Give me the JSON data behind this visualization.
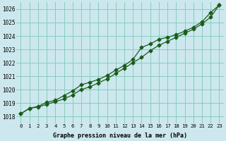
{
  "title": "Graphe pression niveau de la mer (hPa)",
  "x_labels": [
    "0",
    "1",
    "2",
    "3",
    "4",
    "5",
    "6",
    "7",
    "8",
    "9",
    "10",
    "11",
    "12",
    "13",
    "14",
    "15",
    "16",
    "17",
    "18",
    "19",
    "20",
    "21",
    "22",
    "23"
  ],
  "xlim": [
    -0.5,
    23.5
  ],
  "ylim": [
    1017.5,
    1026.5
  ],
  "yticks": [
    1018,
    1019,
    1020,
    1021,
    1022,
    1023,
    1024,
    1025,
    1026
  ],
  "bg_color": "#cce8ee",
  "grid_color": "#88ccbb",
  "line_color": "#1a5c1a",
  "line1_y": [
    1018.2,
    1018.6,
    1018.7,
    1018.9,
    1019.1,
    1019.3,
    1019.6,
    1020.0,
    1020.2,
    1020.5,
    1020.8,
    1021.2,
    1021.6,
    1022.0,
    1022.4,
    1022.9,
    1023.3,
    1023.6,
    1023.9,
    1024.2,
    1024.5,
    1024.9,
    1025.4,
    1026.3
  ],
  "line2_y": [
    1018.2,
    1018.6,
    1018.75,
    1019.05,
    1019.2,
    1019.55,
    1019.9,
    1020.35,
    1020.55,
    1020.75,
    1021.05,
    1021.45,
    1021.8,
    1022.25,
    1023.15,
    1023.4,
    1023.75,
    1023.9,
    1024.1,
    1024.35,
    1024.65,
    1025.05,
    1025.75,
    1026.3
  ],
  "marker": "D",
  "markersize": 2.5,
  "linewidth": 0.9
}
